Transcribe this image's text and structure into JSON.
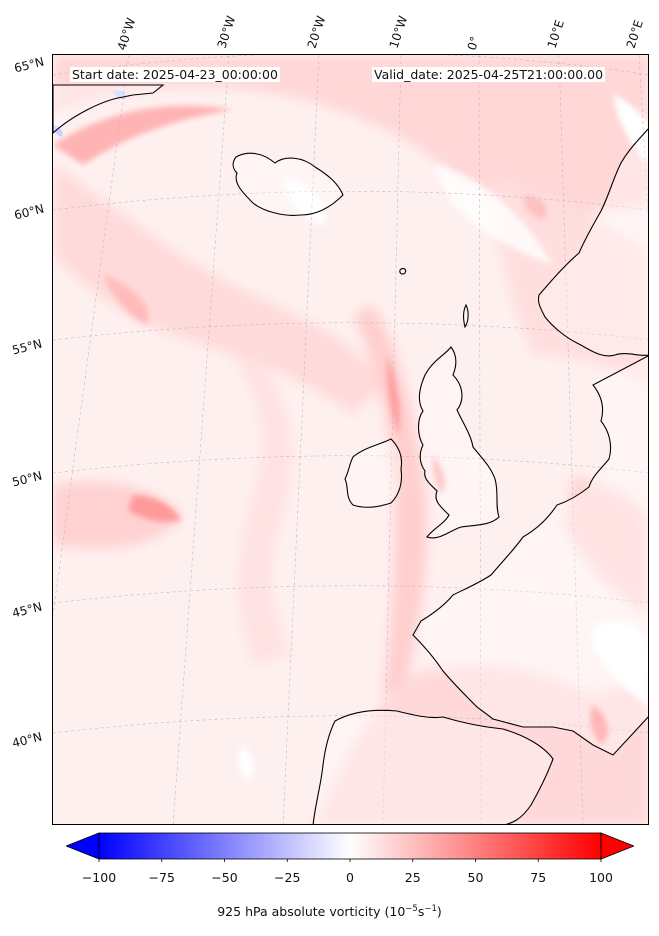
{
  "header": {
    "start_date": "Start date: 2025-04-23_00:00:00",
    "valid_date": "Valid_date: 2025-04-25T21:00:00.00"
  },
  "map": {
    "projection": "conic (North Atlantic / Europe)",
    "extent_lon": [
      -45,
      20
    ],
    "extent_lat": [
      37,
      66
    ],
    "field_colors": {
      "background": "#fff0f0",
      "light_red": "#ffd4d4",
      "medium_red": "#ffb0b0",
      "strong_red": "#ff8c8c",
      "white": "#ffffff",
      "light_blue": "#dfe4ff",
      "coastline": "#000000",
      "gridline": "#bbbbbb"
    }
  },
  "lon_labels": [
    "40°W",
    "30°W",
    "20°W",
    "10°W",
    "0°",
    "10°E",
    "20°E"
  ],
  "lat_labels": [
    "65°N",
    "60°N",
    "55°N",
    "50°N",
    "45°N",
    "40°N"
  ],
  "colorbar": {
    "colormap": "bwr",
    "min": -100,
    "max": 100,
    "extend": "both",
    "ticks": [
      "−100",
      "−75",
      "−50",
      "−25",
      "0",
      "25",
      "50",
      "75",
      "100"
    ],
    "tick_values": [
      -100,
      -75,
      -50,
      -25,
      0,
      25,
      50,
      75,
      100
    ],
    "label_main": "925 hPa absolute vorticity (10",
    "label_exp1": "−5",
    "label_mid": "s",
    "label_exp2": "−1",
    "label_end": ")"
  }
}
